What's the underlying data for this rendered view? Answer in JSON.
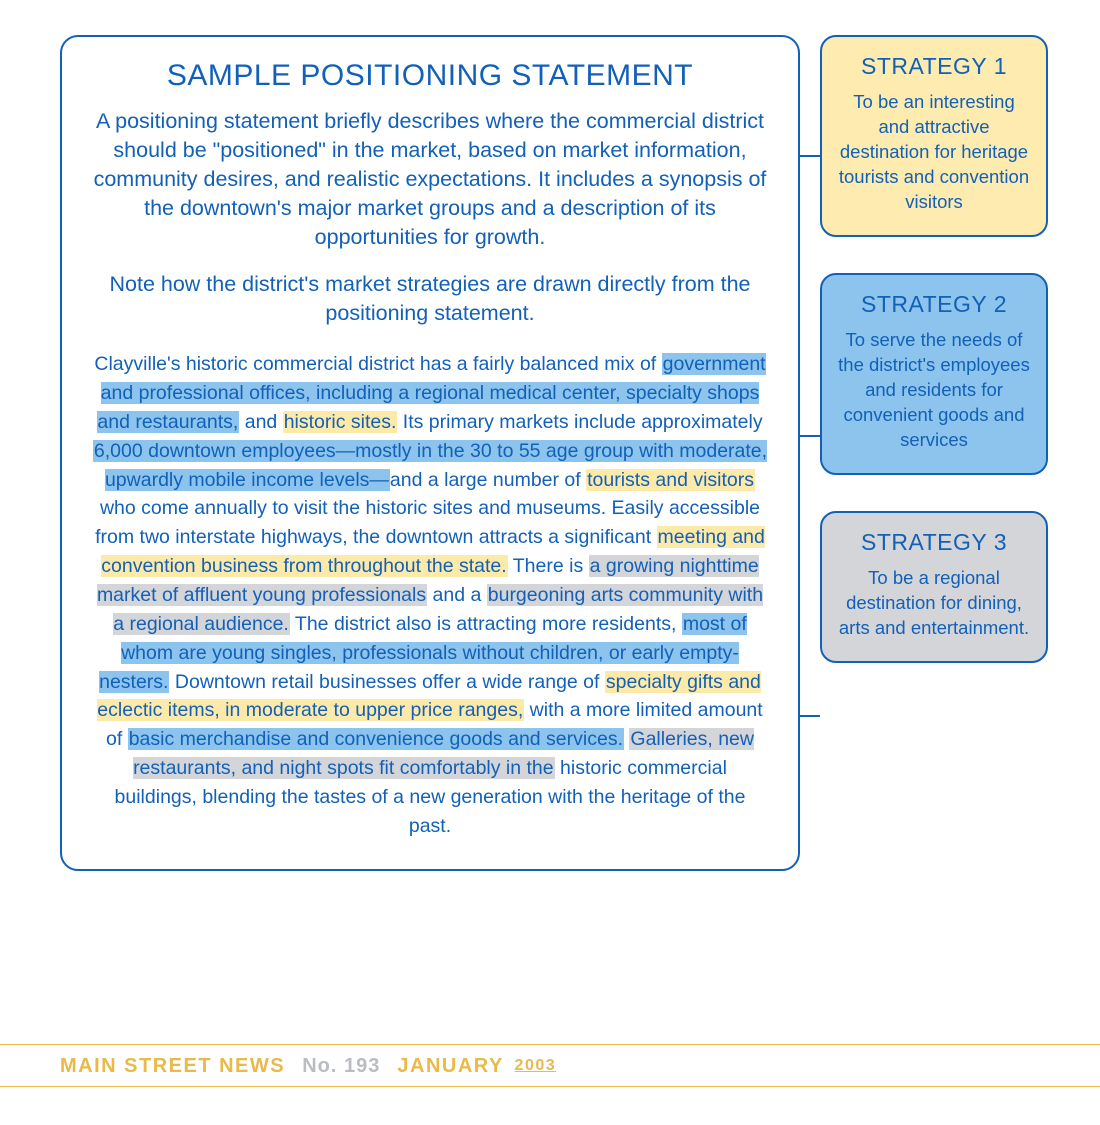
{
  "colors": {
    "border": "#1260b8",
    "text": "#1260b8",
    "highlight_blue": "#8cc4ed",
    "highlight_yellow": "#fde9a8",
    "highlight_gray": "#d3d5d8",
    "footer_gold": "#e9b94a",
    "footer_gray": "#b9bcc0",
    "page_bg": "#ffffff"
  },
  "typography": {
    "title_fontsize": 30,
    "intro_fontsize": 21.5,
    "body_fontsize": 19.5,
    "strategy_title_fontsize": 23,
    "strategy_body_fontsize": 18.5,
    "footer_fontsize": 20
  },
  "main": {
    "title": "SAMPLE POSITIONING STATEMENT",
    "intro": "A positioning statement briefly describes where the commercial district should be \"positioned\" in the market, based on market information, community desires, and realistic expectations. It includes a synopsis of the downtown's major market groups and a description of its opportunities for growth.",
    "note": "Note how the district's market strategies are drawn directly from the positioning statement.",
    "body_segments": [
      {
        "t": "Clayville's historic commercial district has a fairly balanced mix of ",
        "h": null
      },
      {
        "t": "government and professional offices, including a regional medical center, specialty shops and restaurants,",
        "h": "blue"
      },
      {
        "t": " and ",
        "h": null
      },
      {
        "t": "historic sites.",
        "h": "yellow"
      },
      {
        "t": " Its primary markets include approximately ",
        "h": null
      },
      {
        "t": "6,000 downtown employees—mostly in the 30 to 55 age group with moderate, upwardly mobile income levels—",
        "h": "blue"
      },
      {
        "t": "and a large number of ",
        "h": null
      },
      {
        "t": "tourists and visitors",
        "h": "yellow"
      },
      {
        "t": " who come annually to visit the historic sites and museums. Easily accessible from two interstate highways, the downtown attracts a significant ",
        "h": null
      },
      {
        "t": "meeting and convention business from throughout the state.",
        "h": "yellow"
      },
      {
        "t": " There is ",
        "h": null
      },
      {
        "t": "a growing nighttime market of affluent young professionals",
        "h": "gray"
      },
      {
        "t": " and a ",
        "h": null
      },
      {
        "t": "burgeoning arts community with a regional audience.",
        "h": "gray"
      },
      {
        "t": " The district also is attracting more residents, ",
        "h": null
      },
      {
        "t": "most of whom are young singles, professionals without children, or early empty-nesters.",
        "h": "blue"
      },
      {
        "t": " Downtown retail businesses offer a wide range of ",
        "h": null
      },
      {
        "t": "specialty gifts and eclectic items, in moderate to upper price ranges,",
        "h": "yellow"
      },
      {
        "t": " with a more limited amount of ",
        "h": null
      },
      {
        "t": "basic merchandise and convenience goods and services.",
        "h": "blue"
      },
      {
        "t": " ",
        "h": null
      },
      {
        "t": "Galleries, new restaurants, and night spots fit comfortably in the",
        "h": "gray"
      },
      {
        "t": " historic commercial buildings, blending the tastes of a new generation with the heritage of the past.",
        "h": null
      }
    ]
  },
  "strategies": [
    {
      "title": "STRATEGY 1",
      "body": "To be an interesting and attractive destination for heritage tourists and convention visitors",
      "bg": "#fdebb0"
    },
    {
      "title": "STRATEGY 2",
      "body": "To serve the needs of the district's employees and residents for convenient goods and services",
      "bg": "#8cc4ed"
    },
    {
      "title": "STRATEGY 3",
      "body": "To be a regional destination for dining, arts and entertainment.",
      "bg": "#d3d5d8"
    }
  ],
  "footer": {
    "publication": "MAIN STREET NEWS",
    "issue_label": "No. 193",
    "month": "JANUARY",
    "year": "2003"
  }
}
